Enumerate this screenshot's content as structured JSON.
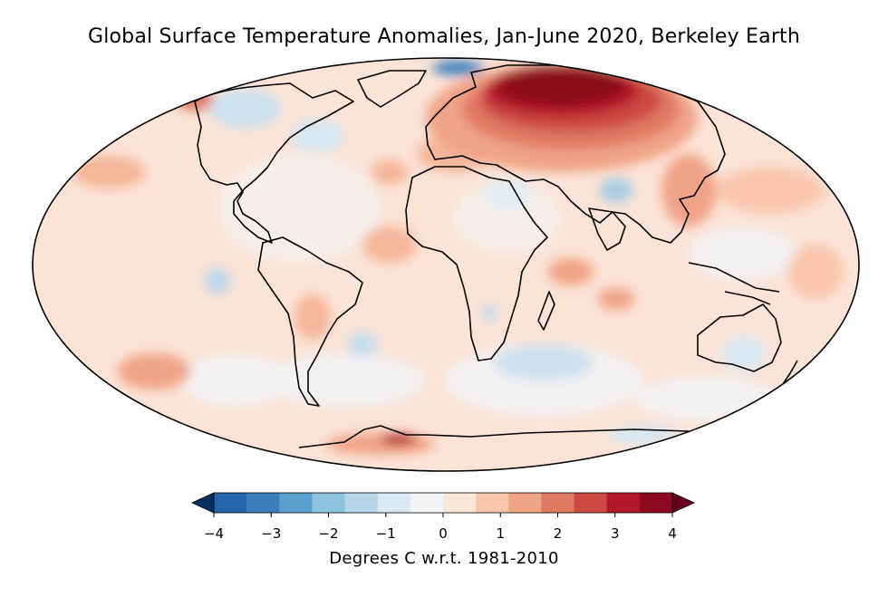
{
  "title": "Global Surface Temperature Anomalies, Jan-June 2020, Berkeley Earth",
  "colorbar": {
    "label": "Degrees C w.r.t. 1981-2010",
    "ticks": [
      "−4",
      "−3",
      "−2",
      "−1",
      "0",
      "1",
      "2",
      "3",
      "4"
    ],
    "tick_values": [
      -4,
      -3,
      -2,
      -1,
      0,
      1,
      2,
      3,
      4
    ],
    "range": [
      -4,
      4
    ],
    "extend": "both",
    "colors": [
      "#053061",
      "#2166ac",
      "#3a7fbc",
      "#5aa0cd",
      "#8ec3de",
      "#b7d7e8",
      "#dbe9f2",
      "#f2f4f6",
      "#fbe6da",
      "#f8c6ad",
      "#f1a385",
      "#e07962",
      "#cb4a43",
      "#b2182b",
      "#8b0a1f",
      "#67001f"
    ]
  },
  "map": {
    "projection": "mollweide",
    "ocean_color": "#fae3d7",
    "coastline_color": "#000000"
  }
}
